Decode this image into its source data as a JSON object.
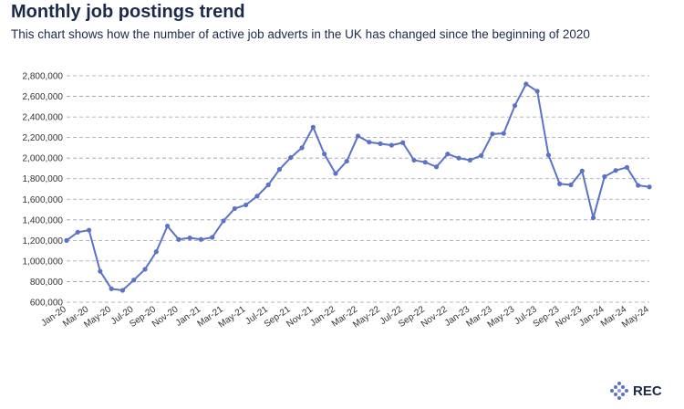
{
  "title": "Monthly job postings trend",
  "subtitle": "This chart shows how the number of active job adverts in the UK has changed since the beginning of 2020",
  "brand": {
    "name": "REC",
    "logo_icon": "rec-diamond-dots-icon"
  },
  "colors": {
    "line": "#5b72c8",
    "marker": "#5b72c8",
    "grid": "#9aa0a6",
    "text": "#1b2a4a",
    "tick_text": "#333333"
  },
  "chart_data": {
    "type": "line",
    "title": "Monthly job postings trend",
    "subtitle": "This chart shows how the number of active job adverts in the UK has changed since the beginning of 2020",
    "xlabel": "",
    "ylabel": "",
    "ylim": [
      600000,
      2800000
    ],
    "yticks": [
      600000,
      800000,
      1000000,
      1200000,
      1400000,
      1600000,
      1800000,
      2000000,
      2200000,
      2400000,
      2600000,
      2800000
    ],
    "ytick_labels": [
      "600,000",
      "800,000",
      "1,000,000",
      "1,200,000",
      "1,400,000",
      "1,600,000",
      "1,800,000",
      "2,000,000",
      "2,200,000",
      "2,400,000",
      "2,600,000",
      "2,800,000"
    ],
    "grid": "horizontal-dashed",
    "x": [
      "Jan-20",
      "Feb-20",
      "Mar-20",
      "Apr-20",
      "May-20",
      "Jun-20",
      "Jul-20",
      "Aug-20",
      "Sep-20",
      "Oct-20",
      "Nov-20",
      "Dec-20",
      "Jan-21",
      "Feb-21",
      "Mar-21",
      "Apr-21",
      "May-21",
      "Jun-21",
      "Jul-21",
      "Aug-21",
      "Sep-21",
      "Oct-21",
      "Nov-21",
      "Dec-21",
      "Jan-22",
      "Feb-22",
      "Mar-22",
      "Apr-22",
      "May-22",
      "Jun-22",
      "Jul-22",
      "Aug-22",
      "Sep-22",
      "Oct-22",
      "Nov-22",
      "Dec-22",
      "Jan-23",
      "Feb-23",
      "Mar-23",
      "Apr-23",
      "May-23",
      "Jun-23",
      "Jul-23",
      "Aug-23",
      "Sep-23",
      "Oct-23",
      "Nov-23",
      "Dec-23",
      "Jan-24",
      "Feb-24",
      "Mar-24",
      "Apr-24",
      "May-24"
    ],
    "xtick_labels": [
      "Jan-20",
      "Mar-20",
      "May-20",
      "Jul-20",
      "Sep-20",
      "Nov-20",
      "Jan-21",
      "Mar-21",
      "May-21",
      "Jul-21",
      "Sep-21",
      "Nov-21",
      "Jan-22",
      "Mar-22",
      "May-22",
      "Jul-22",
      "Sep-22",
      "Nov-22",
      "Jan-23",
      "Mar-23",
      "May-23",
      "Jul-23",
      "Sep-23",
      "Nov-23",
      "Jan-24",
      "Mar-24",
      "May-24"
    ],
    "series": [
      {
        "values": [
          1200000,
          1280000,
          1300000,
          900000,
          730000,
          715000,
          815000,
          920000,
          1090000,
          1340000,
          1210000,
          1225000,
          1210000,
          1230000,
          1390000,
          1510000,
          1545000,
          1630000,
          1740000,
          1890000,
          2005000,
          2100000,
          2300000,
          2040000,
          1850000,
          1970000,
          2215000,
          2155000,
          2140000,
          2125000,
          2150000,
          1980000,
          1960000,
          1915000,
          2040000,
          2000000,
          1980000,
          2025000,
          2235000,
          2240000,
          2510000,
          2720000,
          2650000,
          2030000,
          1750000,
          1740000,
          1875000,
          1420000,
          1820000,
          1880000,
          1910000,
          1735000,
          1720000
        ]
      }
    ]
  }
}
